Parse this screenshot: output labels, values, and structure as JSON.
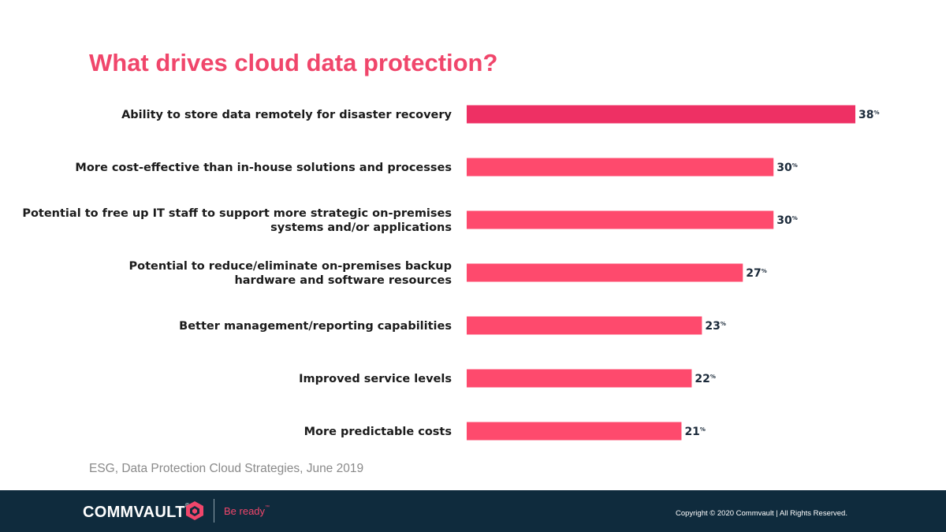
{
  "chart_data": {
    "type": "bar",
    "orientation": "horizontal",
    "title": "What drives cloud data protection?",
    "categories": [
      [
        "Ability to store data remotely for disaster recovery"
      ],
      [
        "More cost-effective than in-house solutions and processes"
      ],
      [
        "Potential to free up IT staff to support more strategic on-premises",
        "systems and/or applications"
      ],
      [
        "Potential to reduce/eliminate on-premises backup",
        "hardware and software resources"
      ],
      [
        "Better management/reporting capabilities"
      ],
      [
        "Improved service levels"
      ],
      [
        "More predictable costs"
      ]
    ],
    "values": [
      38,
      30,
      30,
      27,
      23,
      22,
      21
    ],
    "value_unit": "%",
    "xlim": [
      0,
      38
    ],
    "grid": false,
    "legend": "none",
    "bar_color": "#fe4a6d",
    "highlight_color": "#ee3064"
  },
  "source": "ESG, Data Protection Cloud Strategies, June 2019",
  "footer": {
    "brand": "COMMVAULT",
    "brand_mark": "®",
    "tagline": "Be ready",
    "tagline_mark": "™",
    "copyright": "Copyright © 2020 Commvault | All Rights Reserved.",
    "background": "#0f2b3d",
    "brand_icon": "commvault-cube-icon"
  }
}
